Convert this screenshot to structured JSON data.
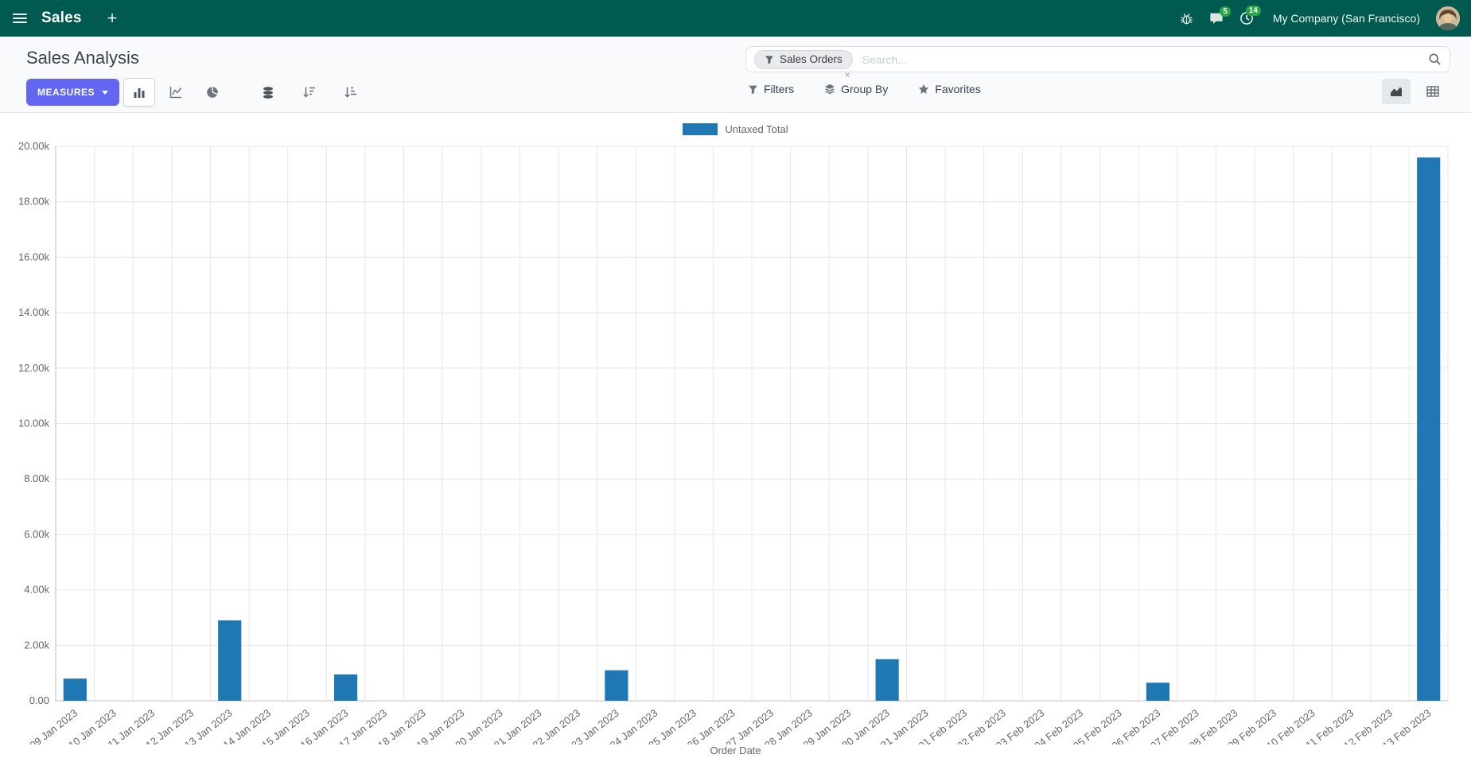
{
  "colors": {
    "navbar_bg": "#005a4f",
    "primary": "#6366f1",
    "badge_green": "#28a745",
    "bar": "#1f77b4"
  },
  "navbar": {
    "app_name": "Sales",
    "plus_label": "+",
    "messages_badge": "5",
    "activities_badge": "14",
    "company": "My Company (San Francisco)"
  },
  "control_panel": {
    "title": "Sales Analysis",
    "measures_label": "MEASURES",
    "search": {
      "facet_label": "Sales Orders",
      "facet_remove": "×",
      "placeholder": "Search..."
    },
    "filters_label": "Filters",
    "group_by_label": "Group By",
    "favorites_label": "Favorites"
  },
  "chart_data": {
    "type": "bar",
    "title": "",
    "xlabel": "Order Date",
    "ylabel": "",
    "ylim": [
      0,
      20000
    ],
    "ytick_interval": 2000,
    "ytick_labels": [
      "0.00",
      "2.00k",
      "4.00k",
      "6.00k",
      "8.00k",
      "10.00k",
      "12.00k",
      "14.00k",
      "16.00k",
      "18.00k",
      "20.00k"
    ],
    "grid": true,
    "legend_position": "top",
    "categories": [
      "09 Jan 2023",
      "10 Jan 2023",
      "11 Jan 2023",
      "12 Jan 2023",
      "13 Jan 2023",
      "14 Jan 2023",
      "15 Jan 2023",
      "16 Jan 2023",
      "17 Jan 2023",
      "18 Jan 2023",
      "19 Jan 2023",
      "20 Jan 2023",
      "21 Jan 2023",
      "22 Jan 2023",
      "23 Jan 2023",
      "24 Jan 2023",
      "25 Jan 2023",
      "26 Jan 2023",
      "27 Jan 2023",
      "28 Jan 2023",
      "29 Jan 2023",
      "30 Jan 2023",
      "31 Jan 2023",
      "01 Feb 2023",
      "02 Feb 2023",
      "03 Feb 2023",
      "04 Feb 2023",
      "05 Feb 2023",
      "06 Feb 2023",
      "07 Feb 2023",
      "08 Feb 2023",
      "09 Feb 2023",
      "10 Feb 2023",
      "11 Feb 2023",
      "12 Feb 2023",
      "13 Feb 2023"
    ],
    "series": [
      {
        "name": "Untaxed Total",
        "color": "#1f77b4",
        "values": [
          800,
          0,
          0,
          0,
          2900,
          0,
          0,
          950,
          0,
          0,
          0,
          0,
          0,
          0,
          1100,
          0,
          0,
          0,
          0,
          0,
          0,
          1500,
          0,
          0,
          0,
          0,
          0,
          0,
          650,
          0,
          0,
          0,
          0,
          0,
          0,
          19600
        ]
      }
    ]
  }
}
